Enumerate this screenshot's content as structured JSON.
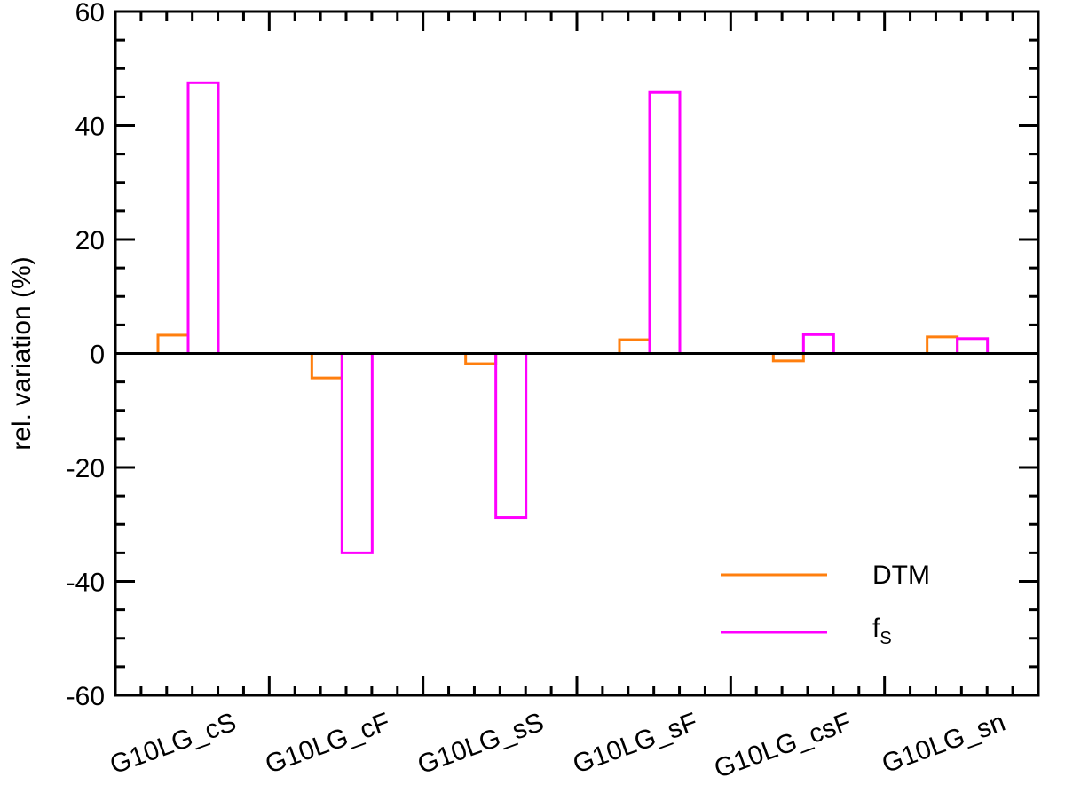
{
  "chart_data": {
    "type": "bar",
    "categories": [
      "G10LG_cS",
      "G10LG_cF",
      "G10LG_sS",
      "G10LG_sF",
      "G10LG_csF",
      "G10LG_sn"
    ],
    "series": [
      {
        "name": "DTM",
        "color": "#ff7f0e",
        "values": [
          3.2,
          -4.3,
          -1.8,
          2.4,
          -1.3,
          2.9
        ]
      },
      {
        "name_main": "f",
        "name_sub": "S",
        "color": "#ff00ff",
        "values": [
          47.5,
          -35.0,
          -28.8,
          45.8,
          3.3,
          2.6
        ]
      }
    ],
    "ylabel": "rel. variation (%)",
    "ylim": [
      -60,
      60
    ],
    "yticks": [
      -60,
      -40,
      -20,
      0,
      20,
      40,
      60
    ],
    "legend_position": "bottom-right",
    "zero_line": true
  }
}
